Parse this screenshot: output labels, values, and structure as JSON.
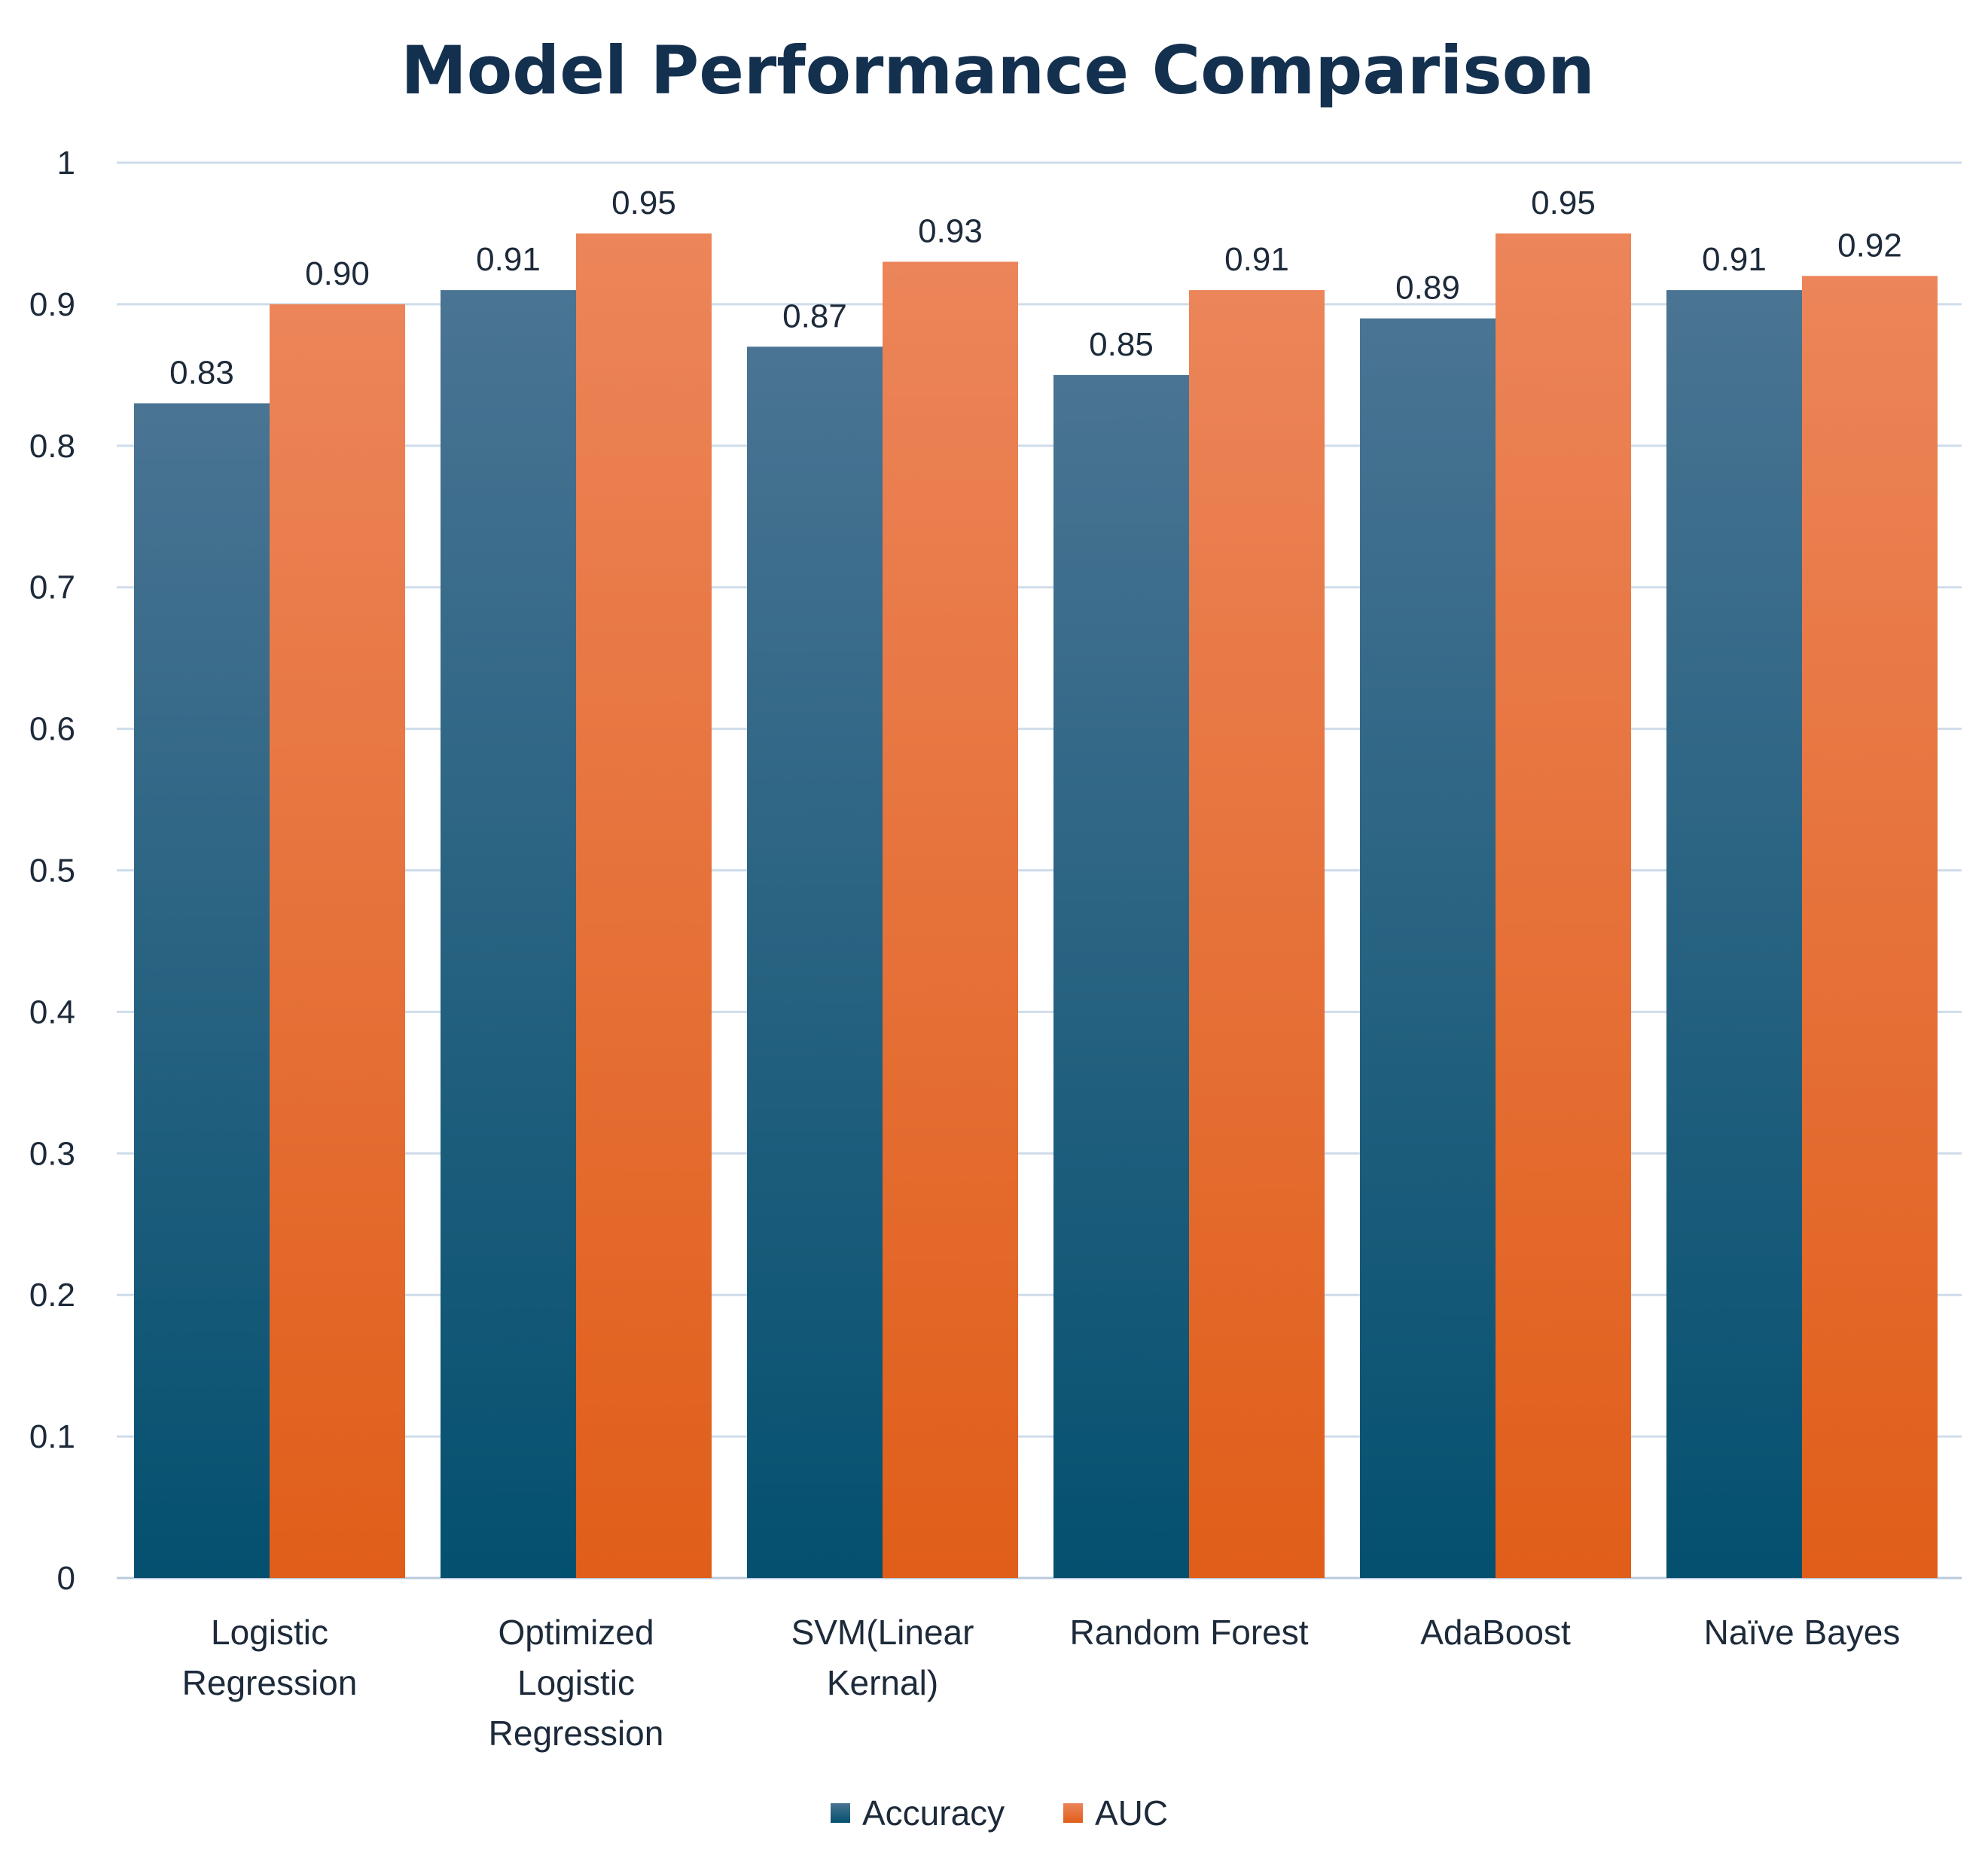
{
  "chart_data": {
    "type": "bar",
    "title": "Model Performance Comparison",
    "xlabel": "",
    "ylabel": "",
    "ylim": [
      0,
      1
    ],
    "yticks": [
      "0",
      "0.1",
      "0.2",
      "0.3",
      "0.4",
      "0.5",
      "0.6",
      "0.7",
      "0.8",
      "0.9",
      "1"
    ],
    "grid": true,
    "legend_position": "bottom",
    "categories": [
      [
        "Logistic",
        "Regression"
      ],
      [
        "Optimized",
        "Logistic",
        "Regression"
      ],
      [
        "SVM(Linear",
        "Kernal)"
      ],
      [
        "Random Forest"
      ],
      [
        "AdaBoost"
      ],
      [
        "Naïve Bayes"
      ]
    ],
    "series": [
      {
        "name": "Accuracy",
        "values": [
          0.83,
          0.91,
          0.87,
          0.85,
          0.89,
          0.91
        ],
        "labels": [
          "0.83",
          "0.91",
          "0.87",
          "0.85",
          "0.89",
          "0.91"
        ],
        "color_top": "#4a7493",
        "color_bottom": "#04506f"
      },
      {
        "name": "AUC",
        "values": [
          0.9,
          0.95,
          0.93,
          0.91,
          0.95,
          0.92
        ],
        "labels": [
          "0.90",
          "0.95",
          "0.93",
          "0.91",
          "0.95",
          "0.92"
        ],
        "color_top": "#ec855a",
        "color_bottom": "#e05e19"
      }
    ]
  }
}
